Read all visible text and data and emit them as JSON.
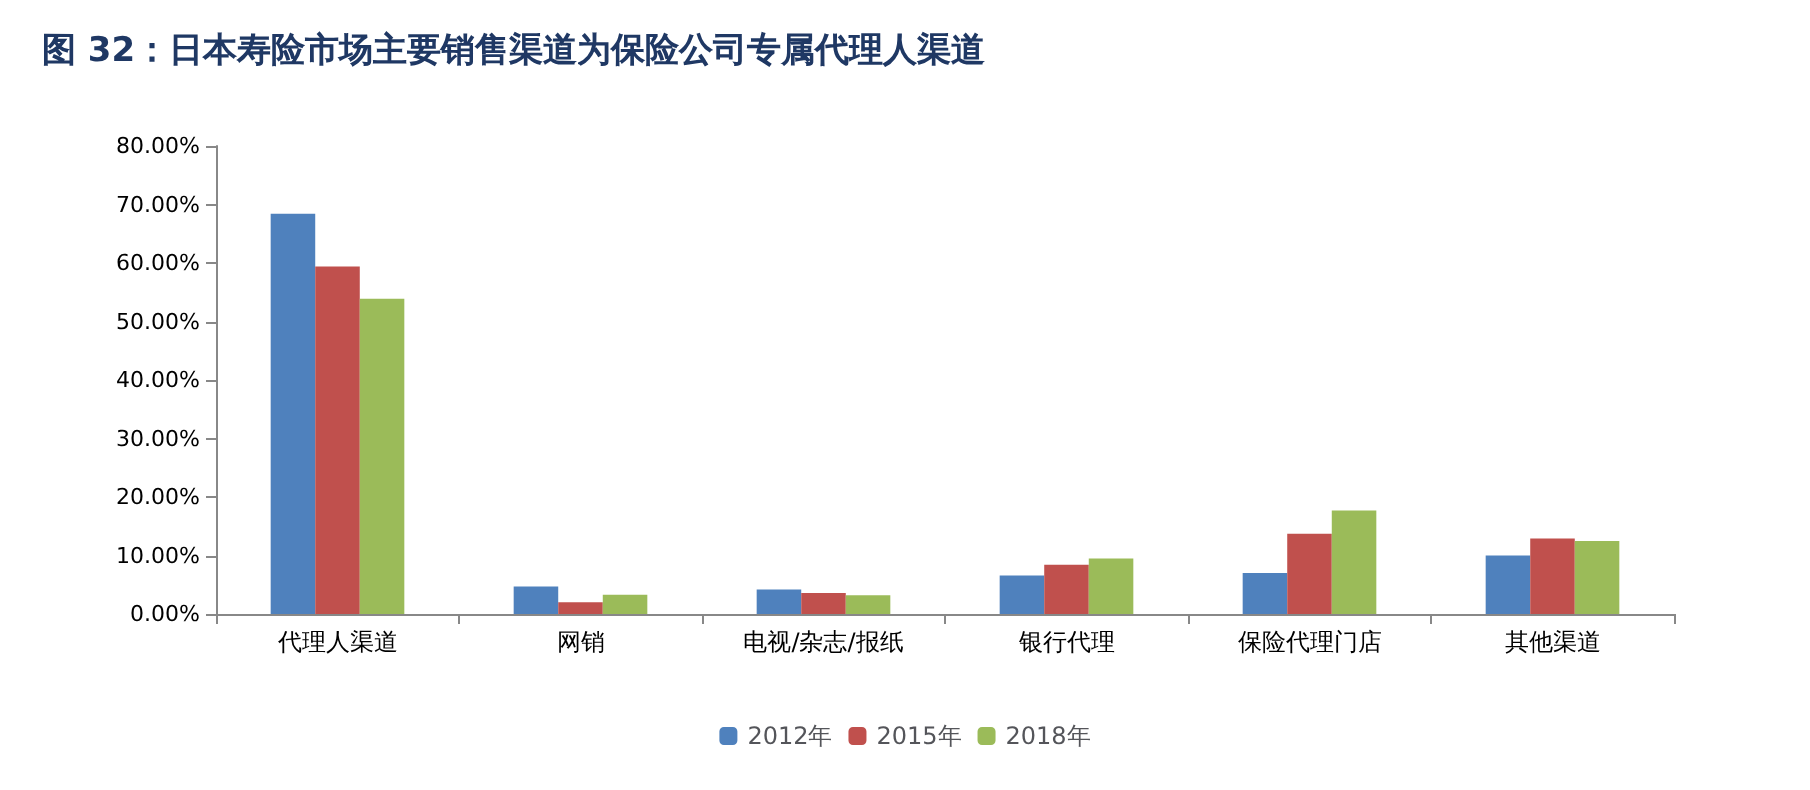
{
  "chart_data": {
    "type": "bar",
    "title": "图 32：日本寿险市场主要销售渠道为保险公司专属代理人渠道",
    "categories": [
      "代理人渠道",
      "网销",
      "电视/杂志/报纸",
      "银行代理",
      "保险代理门店",
      "其他渠道"
    ],
    "series": [
      {
        "name": "2012年",
        "color": "#4f81bd",
        "values": [
          68.4,
          4.7,
          4.2,
          6.6,
          7.0,
          10.0
        ]
      },
      {
        "name": "2015年",
        "color": "#c0504d",
        "values": [
          59.4,
          2.0,
          3.6,
          8.4,
          13.7,
          12.9
        ]
      },
      {
        "name": "2018年",
        "color": "#9bbb59",
        "values": [
          53.9,
          3.3,
          3.2,
          9.5,
          17.7,
          12.5
        ]
      }
    ],
    "ylim": [
      0,
      80
    ],
    "yticks": [
      {
        "value": 0,
        "label": "0.00%"
      },
      {
        "value": 10,
        "label": "10.00%"
      },
      {
        "value": 20,
        "label": "20.00%"
      },
      {
        "value": 30,
        "label": "30.00%"
      },
      {
        "value": 40,
        "label": "40.00%"
      },
      {
        "value": 50,
        "label": "50.00%"
      },
      {
        "value": 60,
        "label": "60.00%"
      },
      {
        "value": 70,
        "label": "70.00%"
      },
      {
        "value": 80,
        "label": "80.00%"
      }
    ],
    "grid": false,
    "legend": "bottom"
  }
}
